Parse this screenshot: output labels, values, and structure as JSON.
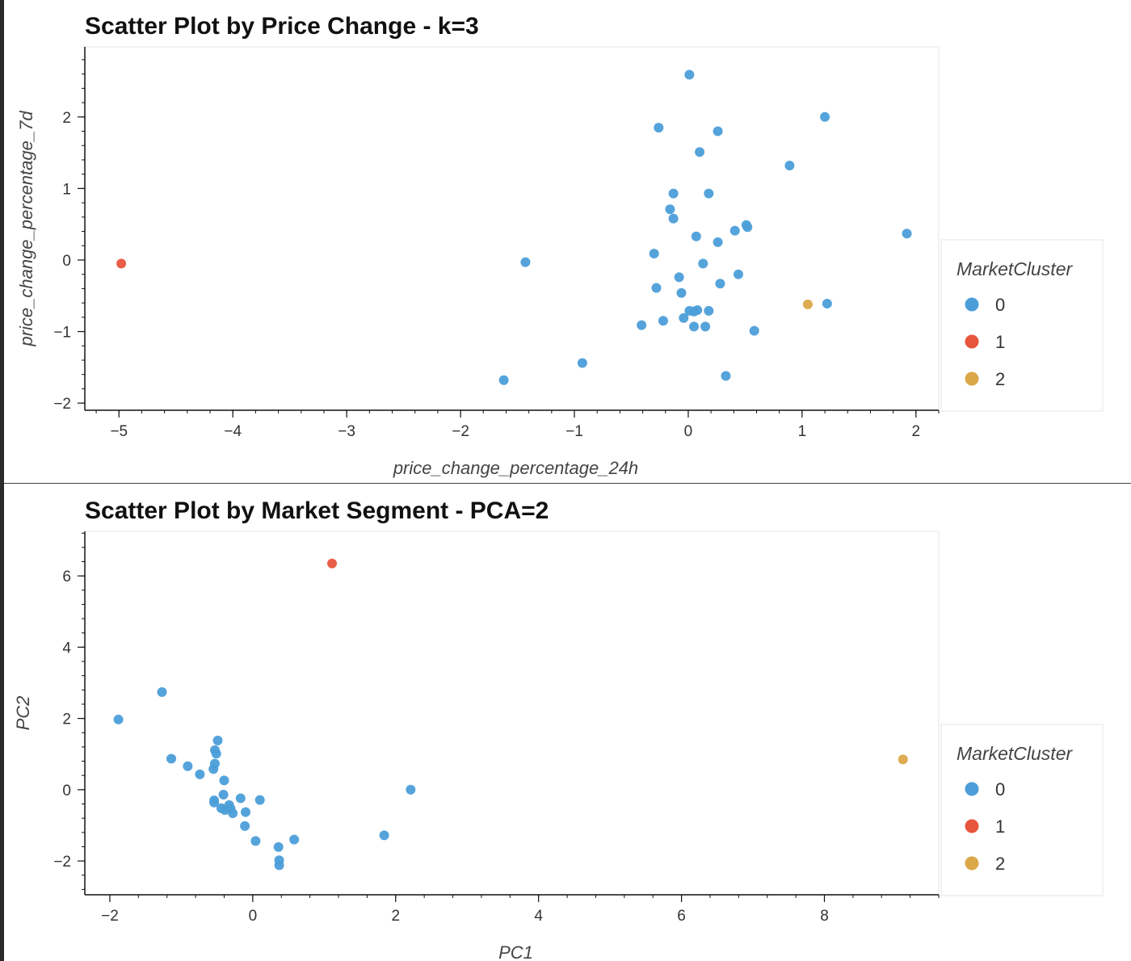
{
  "chart_data": [
    {
      "type": "scatter",
      "title": "Scatter Plot by Price Change - k=3",
      "xlabel": "price_change_percentage_24h",
      "ylabel": "price_change_percentage_7d",
      "xlim": [
        -5.3,
        2.2
      ],
      "ylim": [
        -2.1,
        2.98
      ],
      "xticks": [
        -5,
        -4,
        -3,
        -2,
        -1,
        0,
        1,
        2
      ],
      "yticks": [
        -2,
        -1,
        0,
        1,
        2
      ],
      "grid": false,
      "legend": {
        "title": "MarketCluster",
        "position": "right"
      },
      "series": [
        {
          "name": "0",
          "color": "#4c9ed9",
          "points": [
            [
              0.01,
              2.59
            ],
            [
              -0.26,
              1.85
            ],
            [
              0.26,
              1.8
            ],
            [
              1.2,
              2.0
            ],
            [
              0.1,
              1.51
            ],
            [
              0.89,
              1.32
            ],
            [
              -0.13,
              0.93
            ],
            [
              0.18,
              0.93
            ],
            [
              -0.16,
              0.71
            ],
            [
              -0.13,
              0.58
            ],
            [
              0.07,
              0.33
            ],
            [
              0.26,
              0.25
            ],
            [
              0.41,
              0.41
            ],
            [
              0.51,
              0.49
            ],
            [
              0.52,
              0.46
            ],
            [
              1.92,
              0.37
            ],
            [
              -1.43,
              -0.03
            ],
            [
              -0.3,
              0.09
            ],
            [
              0.13,
              -0.05
            ],
            [
              0.44,
              -0.2
            ],
            [
              -0.08,
              -0.24
            ],
            [
              0.28,
              -0.33
            ],
            [
              -0.28,
              -0.39
            ],
            [
              -0.06,
              -0.46
            ],
            [
              0.01,
              -0.71
            ],
            [
              0.05,
              -0.72
            ],
            [
              0.08,
              -0.7
            ],
            [
              0.18,
              -0.71
            ],
            [
              1.22,
              -0.61
            ],
            [
              -0.04,
              -0.81
            ],
            [
              -0.22,
              -0.85
            ],
            [
              -0.41,
              -0.91
            ],
            [
              0.05,
              -0.93
            ],
            [
              0.15,
              -0.93
            ],
            [
              0.58,
              -0.99
            ],
            [
              -0.93,
              -1.44
            ],
            [
              -1.62,
              -1.68
            ],
            [
              0.33,
              -1.62
            ]
          ]
        },
        {
          "name": "1",
          "color": "#e8553d",
          "points": [
            [
              -4.98,
              -0.05
            ]
          ]
        },
        {
          "name": "2",
          "color": "#dba849",
          "points": [
            [
              1.05,
              -0.62
            ]
          ]
        }
      ]
    },
    {
      "type": "scatter",
      "title": "Scatter Plot by Market Segment - PCA=2",
      "xlabel": "PC1",
      "ylabel": "PC2",
      "xlim": [
        -2.35,
        9.6
      ],
      "ylim": [
        -2.95,
        7.25
      ],
      "xticks": [
        -2,
        0,
        2,
        4,
        6,
        8
      ],
      "yticks": [
        -2,
        0,
        2,
        4,
        6
      ],
      "grid": false,
      "legend": {
        "title": "MarketCluster",
        "position": "right"
      },
      "series": [
        {
          "name": "0",
          "color": "#4c9ed9",
          "points": [
            [
              -1.88,
              1.97
            ],
            [
              -1.27,
              2.74
            ],
            [
              -1.14,
              0.87
            ],
            [
              -0.91,
              0.66
            ],
            [
              -0.74,
              0.43
            ],
            [
              -0.55,
              0.58
            ],
            [
              -0.53,
              0.73
            ],
            [
              -0.53,
              1.11
            ],
            [
              -0.51,
              1.01
            ],
            [
              -0.49,
              1.38
            ],
            [
              -0.4,
              0.26
            ],
            [
              -0.41,
              -0.14
            ],
            [
              -0.54,
              -0.3
            ],
            [
              -0.54,
              -0.36
            ],
            [
              -0.44,
              -0.52
            ],
            [
              -0.39,
              -0.57
            ],
            [
              -0.33,
              -0.43
            ],
            [
              -0.31,
              -0.53
            ],
            [
              -0.28,
              -0.66
            ],
            [
              -0.17,
              -0.24
            ],
            [
              -0.1,
              -0.63
            ],
            [
              0.1,
              -0.29
            ],
            [
              -0.11,
              -1.02
            ],
            [
              0.04,
              -1.44
            ],
            [
              0.36,
              -1.61
            ],
            [
              0.37,
              -1.98
            ],
            [
              0.37,
              -2.12
            ],
            [
              0.58,
              -1.4
            ],
            [
              1.84,
              -1.28
            ],
            [
              2.21,
              0.0
            ]
          ]
        },
        {
          "name": "1",
          "color": "#e8553d",
          "points": [
            [
              1.11,
              6.35
            ]
          ]
        },
        {
          "name": "2",
          "color": "#dba849",
          "points": [
            [
              9.1,
              0.85
            ]
          ]
        }
      ]
    }
  ]
}
